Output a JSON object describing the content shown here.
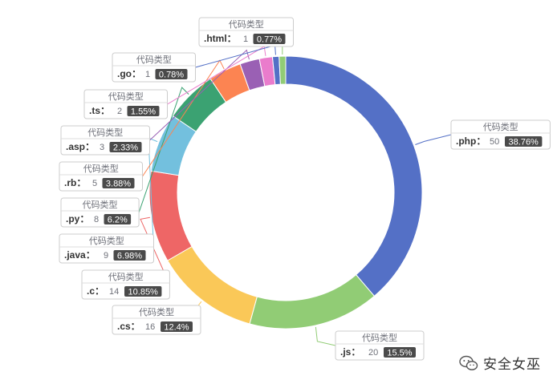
{
  "chart_data": {
    "type": "pie",
    "variant": "donut",
    "label_title": "代码类型",
    "slices": [
      {
        "name": ".php",
        "value": 50,
        "percent": "38.76%",
        "color": "#5470c6"
      },
      {
        "name": ".js",
        "value": 20,
        "percent": "15.5%",
        "color": "#91cc75"
      },
      {
        "name": ".cs",
        "value": 16,
        "percent": "12.4%",
        "color": "#fac858"
      },
      {
        "name": ".c",
        "value": 14,
        "percent": "10.85%",
        "color": "#ee6666"
      },
      {
        "name": ".java",
        "value": 9,
        "percent": "6.98%",
        "color": "#73c0de"
      },
      {
        "name": ".py",
        "value": 8,
        "percent": "6.2%",
        "color": "#3ba272"
      },
      {
        "name": ".rb",
        "value": 5,
        "percent": "3.88%",
        "color": "#fc8452"
      },
      {
        "name": ".asp",
        "value": 3,
        "percent": "2.33%",
        "color": "#9a60b4"
      },
      {
        "name": ".ts",
        "value": 2,
        "percent": "1.55%",
        "color": "#ea7ccc"
      },
      {
        "name": ".go",
        "value": 1,
        "percent": "0.78%",
        "color": "#5470c6"
      },
      {
        "name": ".html",
        "value": 1,
        "percent": "0.77%",
        "color": "#91cc75"
      }
    ]
  },
  "watermark": {
    "text": "安全女巫",
    "icon": "wechat-icon"
  }
}
